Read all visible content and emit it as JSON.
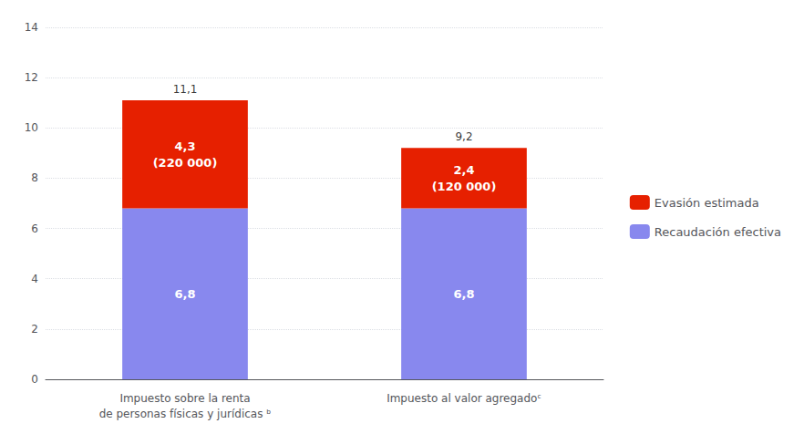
{
  "chart_data": {
    "type": "bar",
    "stacked": true,
    "categories": [
      "Impuesto sobre la renta\nde personas físicas y jurídicas ᵇ",
      "Impuesto al valor agregadoᶜ"
    ],
    "series": [
      {
        "name": "Recaudación efectiva",
        "color": "#8888ee",
        "values": [
          6.8,
          6.8
        ],
        "value_labels": [
          "6,8",
          "6,8"
        ]
      },
      {
        "name": "Evasión estimada",
        "color": "#e62000",
        "values": [
          4.3,
          2.4
        ],
        "value_labels": [
          "4,3\n(220 000)",
          "2,4\n(120 000)"
        ]
      }
    ],
    "totals": [
      11.1,
      9.2
    ],
    "total_labels": [
      "11,1",
      "9,2"
    ],
    "ylim": [
      0,
      14
    ],
    "yticks": [
      0,
      2,
      4,
      6,
      8,
      10,
      12,
      14
    ],
    "grid": true,
    "legend": "right",
    "data_labels": true
  }
}
